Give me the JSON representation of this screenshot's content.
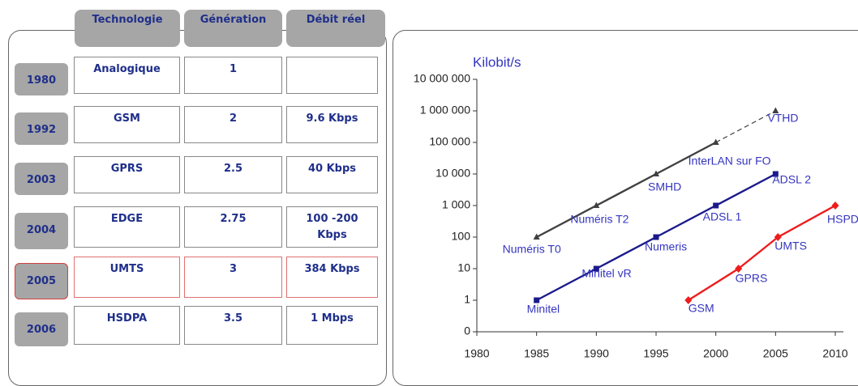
{
  "table": {
    "header": [
      "Technologie",
      "Génération",
      "Débit réel"
    ],
    "rows": [
      [
        "1980",
        "Analogique",
        "1"
      ],
      [
        "1992",
        "GSM",
        "2",
        "9.6 Kbps"
      ],
      [
        "2003",
        "GPRS",
        "2.5",
        "40 Kbps"
      ],
      [
        "2004",
        "EDGE",
        "2.75",
        "100 -200 Kbps"
      ],
      [
        "2005",
        "UMTS",
        "3",
        "384 Kbps"
      ],
      [
        "2006",
        "HSDPA",
        "3.5",
        "1 Mbps"
      ]
    ]
  },
  "chart_data": {
    "type": "line",
    "y_label": "Kilobit/s",
    "log_y": true,
    "xlim": [
      1980,
      2010
    ],
    "xticks": [
      1980,
      1985,
      1990,
      1995,
      2000,
      2005,
      2010
    ],
    "ylim": [
      0.1,
      10000000
    ],
    "yticks": [
      {
        "value": 0.1,
        "label": "0"
      },
      1,
      10,
      100,
      {
        "value": 1000,
        "label": "1 000"
      },
      {
        "value": 10000,
        "label": "10 000"
      },
      {
        "value": 100000,
        "label": "100 000"
      },
      {
        "value": 1000000,
        "label": "1 000 000"
      },
      {
        "value": 10000000,
        "label": "10 000 000"
      }
    ],
    "series": [
      {
        "color": "#404040",
        "marker": "triangle",
        "segment_styles": [
          "solid",
          "solid",
          "solid",
          "dashed"
        ],
        "x": [
          1985,
          1990,
          1995,
          2000,
          2005
        ],
        "values": [
          100,
          1000,
          10000,
          100000,
          1000000
        ],
        "point_labels": [
          "Numéris T0",
          "Numéris T2",
          "SMHD",
          "InterLAN sur FO",
          "VTHD"
        ]
      },
      {
        "color": "#1a1a8c",
        "marker": "square",
        "segment_styles": [
          "solid",
          "solid",
          "solid",
          "solid"
        ],
        "x": [
          1985,
          1990,
          1995,
          2000,
          2005
        ],
        "values": [
          1,
          10,
          100,
          1000,
          10000
        ],
        "point_labels": [
          "Minitel",
          "Minitel vR",
          "Numeris",
          "ADSL 1",
          "ADSL 2"
        ]
      },
      {
        "color": "#ee1c1c",
        "marker": "diamond",
        "segment_styles": [
          "solid",
          "solid",
          "solid"
        ],
        "x": [
          1997.7,
          2001.9,
          2005.2,
          2010
        ],
        "values": [
          1,
          10,
          100,
          1000
        ],
        "point_labels": [
          "GSM",
          "GPRS",
          "UMTS",
          "HSPDA"
        ]
      }
    ]
  }
}
